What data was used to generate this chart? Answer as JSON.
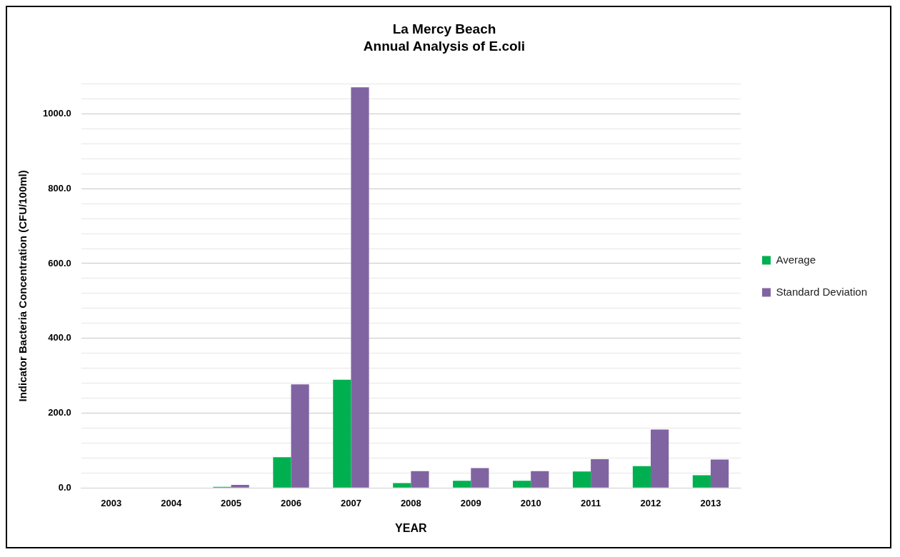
{
  "chart_data": {
    "type": "bar",
    "title": "La Mercy Beach",
    "subtitle": "Annual Analysis of E.coli",
    "xlabel": "YEAR",
    "ylabel": "Indicator Bacteria Concentration (CFU/100ml)",
    "categories": [
      "2003",
      "2004",
      "2005",
      "2006",
      "2007",
      "2008",
      "2009",
      "2010",
      "2011",
      "2012",
      "2013"
    ],
    "series": [
      {
        "name": "Average",
        "color": "#00b050",
        "values": [
          0,
          0,
          3,
          82,
          289,
          13,
          19,
          19,
          44,
          58,
          34
        ]
      },
      {
        "name": "Standard Deviation",
        "color": "#8064a2",
        "values": [
          0,
          0,
          8,
          277,
          1071,
          45,
          53,
          45,
          77,
          156,
          76
        ]
      }
    ],
    "ylim": [
      0,
      1080
    ],
    "yticks": [
      {
        "value": 0,
        "label": "0.0"
      },
      {
        "value": 40,
        "label": null
      },
      {
        "value": 80,
        "label": null
      },
      {
        "value": 120,
        "label": null
      },
      {
        "value": 160,
        "label": null
      },
      {
        "value": 200,
        "label": "200.0"
      },
      {
        "value": 240,
        "label": null
      },
      {
        "value": 280,
        "label": null
      },
      {
        "value": 320,
        "label": null
      },
      {
        "value": 360,
        "label": null
      },
      {
        "value": 400,
        "label": "400.0"
      },
      {
        "value": 440,
        "label": null
      },
      {
        "value": 480,
        "label": null
      },
      {
        "value": 520,
        "label": null
      },
      {
        "value": 560,
        "label": null
      },
      {
        "value": 600,
        "label": "600.0"
      },
      {
        "value": 640,
        "label": null
      },
      {
        "value": 680,
        "label": null
      },
      {
        "value": 720,
        "label": null
      },
      {
        "value": 760,
        "label": null
      },
      {
        "value": 800,
        "label": "800.0"
      },
      {
        "value": 840,
        "label": null
      },
      {
        "value": 880,
        "label": null
      },
      {
        "value": 920,
        "label": null
      },
      {
        "value": 960,
        "label": null
      },
      {
        "value": 1000,
        "label": "1000.0"
      },
      {
        "value": 1040,
        "label": null
      },
      {
        "value": 1080,
        "label": null
      }
    ],
    "grid": "y",
    "legend": "right"
  }
}
